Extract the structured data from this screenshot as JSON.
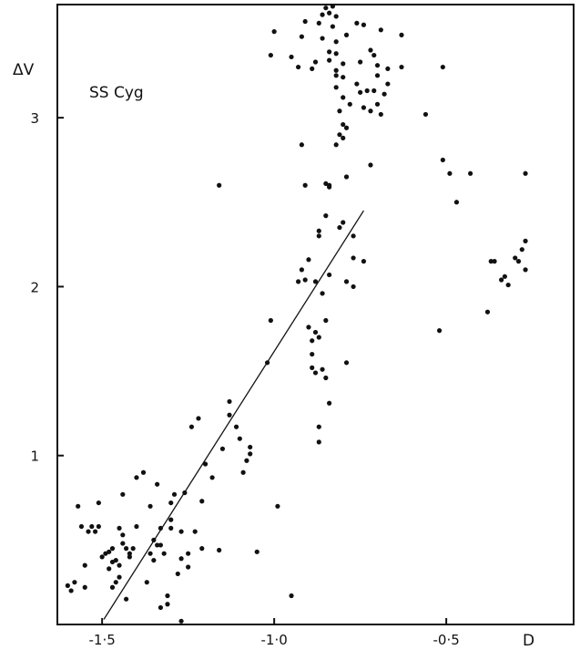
{
  "chart_data": {
    "type": "scatter",
    "title": "",
    "annotation": "SS Cyg",
    "xlabel": "D",
    "ylabel": "ΔV",
    "xlim": [
      -1.63,
      -0.13
    ],
    "ylim": [
      0.0,
      3.67
    ],
    "x_ticks": [
      -1.5,
      -1.0,
      -0.5
    ],
    "x_tick_labels": [
      "-1·5",
      "-1·0",
      "-0·5"
    ],
    "y_ticks": [
      1,
      2,
      3
    ],
    "y_tick_labels": [
      "1",
      "2",
      "3"
    ],
    "grid": false,
    "fit_line": {
      "x": [
        -1.495,
        -0.74
      ],
      "y": [
        0.03,
        2.45
      ]
    },
    "points": [
      [
        -0.85,
        3.65
      ],
      [
        -0.83,
        3.66
      ],
      [
        -0.84,
        3.62
      ],
      [
        -0.86,
        3.61
      ],
      [
        -0.82,
        3.6
      ],
      [
        -0.91,
        3.57
      ],
      [
        -0.87,
        3.56
      ],
      [
        -0.83,
        3.54
      ],
      [
        -0.76,
        3.56
      ],
      [
        -0.74,
        3.55
      ],
      [
        -0.69,
        3.52
      ],
      [
        -0.63,
        3.49
      ],
      [
        -1.0,
        3.51
      ],
      [
        -0.92,
        3.48
      ],
      [
        -0.86,
        3.47
      ],
      [
        -0.82,
        3.45
      ],
      [
        -0.79,
        3.49
      ],
      [
        -0.72,
        3.4
      ],
      [
        -0.71,
        3.37
      ],
      [
        -0.84,
        3.39
      ],
      [
        -0.82,
        3.38
      ],
      [
        -0.84,
        3.34
      ],
      [
        -1.01,
        3.37
      ],
      [
        -0.95,
        3.36
      ],
      [
        -0.88,
        3.33
      ],
      [
        -0.8,
        3.32
      ],
      [
        -0.75,
        3.33
      ],
      [
        -0.7,
        3.31
      ],
      [
        -0.67,
        3.29
      ],
      [
        -0.63,
        3.3
      ],
      [
        -0.93,
        3.3
      ],
      [
        -0.89,
        3.29
      ],
      [
        -0.82,
        3.28
      ],
      [
        -0.82,
        3.25
      ],
      [
        -0.8,
        3.24
      ],
      [
        -0.7,
        3.25
      ],
      [
        -0.67,
        3.2
      ],
      [
        -0.76,
        3.2
      ],
      [
        -0.75,
        3.15
      ],
      [
        -0.73,
        3.16
      ],
      [
        -0.71,
        3.16
      ],
      [
        -0.68,
        3.14
      ],
      [
        -0.82,
        3.18
      ],
      [
        -0.8,
        3.12
      ],
      [
        -0.78,
        3.08
      ],
      [
        -0.74,
        3.06
      ],
      [
        -0.72,
        3.04
      ],
      [
        -0.7,
        3.08
      ],
      [
        -0.69,
        3.02
      ],
      [
        -0.81,
        3.04
      ],
      [
        -0.8,
        2.96
      ],
      [
        -0.79,
        2.94
      ],
      [
        -0.81,
        2.9
      ],
      [
        -0.8,
        2.88
      ],
      [
        -0.82,
        2.84
      ],
      [
        -0.56,
        3.02
      ],
      [
        -0.51,
        3.3
      ],
      [
        -0.92,
        2.84
      ],
      [
        -0.72,
        2.72
      ],
      [
        -0.51,
        2.75
      ],
      [
        -0.49,
        2.67
      ],
      [
        -0.47,
        2.5
      ],
      [
        -0.43,
        2.67
      ],
      [
        -0.27,
        2.67
      ],
      [
        -0.85,
        2.61
      ],
      [
        -0.84,
        2.59
      ],
      [
        -0.84,
        2.6
      ],
      [
        -0.79,
        2.65
      ],
      [
        -0.91,
        2.6
      ],
      [
        -1.16,
        2.6
      ],
      [
        -0.85,
        2.42
      ],
      [
        -0.8,
        2.38
      ],
      [
        -0.81,
        2.35
      ],
      [
        -0.77,
        2.3
      ],
      [
        -0.87,
        2.33
      ],
      [
        -0.87,
        2.3
      ],
      [
        -0.77,
        2.17
      ],
      [
        -0.74,
        2.15
      ],
      [
        -0.9,
        2.16
      ],
      [
        -0.91,
        2.04
      ],
      [
        -0.92,
        2.1
      ],
      [
        -0.93,
        2.03
      ],
      [
        -0.88,
        2.03
      ],
      [
        -0.84,
        2.07
      ],
      [
        -0.79,
        2.03
      ],
      [
        -0.77,
        2.0
      ],
      [
        -0.86,
        1.96
      ],
      [
        -0.85,
        1.8
      ],
      [
        -1.01,
        1.8
      ],
      [
        -0.9,
        1.76
      ],
      [
        -0.88,
        1.73
      ],
      [
        -0.89,
        1.68
      ],
      [
        -0.87,
        1.7
      ],
      [
        -0.89,
        1.6
      ],
      [
        -0.89,
        1.52
      ],
      [
        -0.88,
        1.49
      ],
      [
        -0.86,
        1.51
      ],
      [
        -0.85,
        1.46
      ],
      [
        -0.79,
        1.55
      ],
      [
        -1.02,
        1.55
      ],
      [
        -0.84,
        1.31
      ],
      [
        -0.87,
        1.17
      ],
      [
        -0.87,
        1.08
      ],
      [
        -0.99,
        0.7
      ],
      [
        -0.95,
        0.17
      ],
      [
        -0.52,
        1.74
      ],
      [
        -0.38,
        1.85
      ],
      [
        -0.37,
        2.15
      ],
      [
        -0.36,
        2.15
      ],
      [
        -0.34,
        2.04
      ],
      [
        -0.32,
        2.01
      ],
      [
        -0.33,
        2.06
      ],
      [
        -0.3,
        2.17
      ],
      [
        -0.29,
        2.15
      ],
      [
        -0.27,
        2.27
      ],
      [
        -0.27,
        2.1
      ],
      [
        -0.28,
        2.22
      ],
      [
        -1.05,
        0.43
      ],
      [
        -1.07,
        1.01
      ],
      [
        -1.07,
        1.05
      ],
      [
        -1.08,
        0.97
      ],
      [
        -1.09,
        0.9
      ],
      [
        -1.1,
        1.1
      ],
      [
        -1.11,
        1.17
      ],
      [
        -1.13,
        1.32
      ],
      [
        -1.13,
        1.24
      ],
      [
        -1.15,
        1.04
      ],
      [
        -1.16,
        0.44
      ],
      [
        -1.18,
        0.87
      ],
      [
        -1.2,
        0.95
      ],
      [
        -1.21,
        0.45
      ],
      [
        -1.22,
        1.22
      ],
      [
        -1.24,
        1.17
      ],
      [
        -1.21,
        0.73
      ],
      [
        -1.23,
        0.55
      ],
      [
        -1.25,
        0.42
      ],
      [
        -1.25,
        0.34
      ],
      [
        -1.26,
        0.78
      ],
      [
        -1.27,
        0.55
      ],
      [
        -1.27,
        0.39
      ],
      [
        -1.28,
        0.3
      ],
      [
        -1.29,
        0.77
      ],
      [
        -1.3,
        0.72
      ],
      [
        -1.3,
        0.62
      ],
      [
        -1.3,
        0.57
      ],
      [
        -1.31,
        0.17
      ],
      [
        -1.31,
        0.12
      ],
      [
        -1.32,
        0.42
      ],
      [
        -1.33,
        0.57
      ],
      [
        -1.33,
        0.47
      ],
      [
        -1.33,
        0.1
      ],
      [
        -1.35,
        0.38
      ],
      [
        -1.36,
        0.42
      ],
      [
        -1.37,
        0.25
      ],
      [
        -1.38,
        0.9
      ],
      [
        -1.4,
        0.87
      ],
      [
        -1.4,
        0.58
      ],
      [
        -1.41,
        0.45
      ],
      [
        -1.42,
        0.42
      ],
      [
        -1.42,
        0.4
      ],
      [
        -1.43,
        0.15
      ],
      [
        -1.45,
        0.35
      ],
      [
        -1.45,
        0.28
      ],
      [
        -1.46,
        0.25
      ],
      [
        -1.47,
        0.22
      ],
      [
        -1.47,
        0.37
      ],
      [
        -1.49,
        0.42
      ],
      [
        -1.5,
        0.4
      ],
      [
        -1.51,
        0.72
      ],
      [
        -1.51,
        0.58
      ],
      [
        -1.52,
        0.55
      ],
      [
        -1.53,
        0.58
      ],
      [
        -1.54,
        0.55
      ],
      [
        -1.55,
        0.35
      ],
      [
        -1.55,
        0.22
      ],
      [
        -1.56,
        0.58
      ],
      [
        -1.57,
        0.7
      ],
      [
        -1.58,
        0.25
      ],
      [
        -1.59,
        0.2
      ],
      [
        -1.6,
        0.23
      ],
      [
        -1.45,
        0.57
      ],
      [
        -1.44,
        0.53
      ],
      [
        -1.44,
        0.48
      ],
      [
        -1.43,
        0.45
      ],
      [
        -1.44,
        0.77
      ],
      [
        -1.36,
        0.7
      ],
      [
        -1.34,
        0.83
      ],
      [
        -1.27,
        0.02
      ],
      [
        -1.48,
        0.43
      ],
      [
        -1.48,
        0.33
      ],
      [
        -1.47,
        0.45
      ],
      [
        -1.46,
        0.38
      ],
      [
        -1.35,
        0.5
      ],
      [
        -1.34,
        0.47
      ]
    ]
  }
}
